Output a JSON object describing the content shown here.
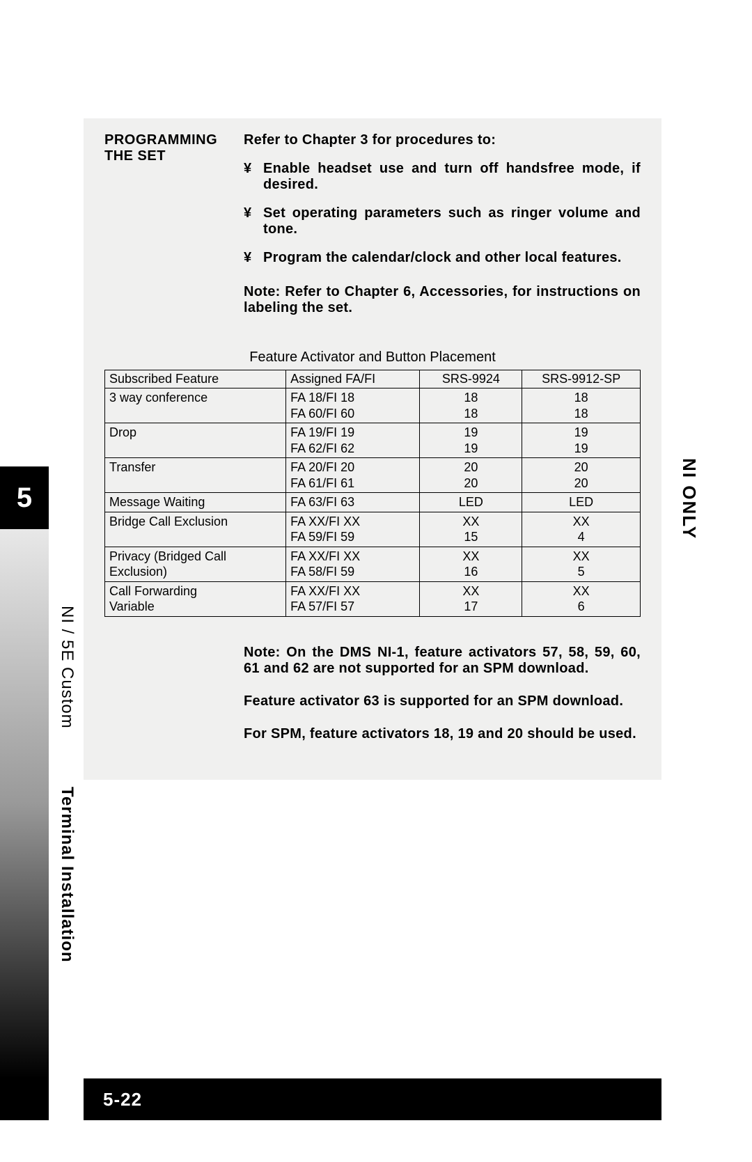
{
  "chapter_number": "5",
  "side_labels": {
    "ni_only": "NI ONLY",
    "section_prefix": "NI / 5E Custom",
    "section_title": "Terminal Installation"
  },
  "page_number": "5-22",
  "programming": {
    "heading_line1": "PROGRAMMING",
    "heading_line2": "THE SET",
    "intro": "Refer to Chapter 3 for procedures to:",
    "bullets": [
      "Enable headset use and turn off handsfree mode, if desired.",
      "Set operating parameters such as ringer volume and tone.",
      "Program the calendar/clock and other local features."
    ],
    "note": "Note: Refer to Chapter 6, Accessories, for instructions on labeling the set."
  },
  "table": {
    "caption": "Feature Activator and Button Placement",
    "headers": [
      "Subscribed Feature",
      "Assigned FA/FI",
      "SRS-9924",
      "SRS-9912-SP"
    ],
    "rows": [
      {
        "feature": "3 way conference",
        "fa": [
          "FA 18/FI 18",
          "FA 60/FI 60"
        ],
        "c3": [
          "18",
          "18"
        ],
        "c4": [
          "18",
          "18"
        ]
      },
      {
        "feature": "Drop",
        "fa": [
          "FA 19/FI 19",
          "FA 62/FI 62"
        ],
        "c3": [
          "19",
          "19"
        ],
        "c4": [
          "19",
          "19"
        ]
      },
      {
        "feature": "Transfer",
        "fa": [
          "FA 20/FI 20",
          "FA 61/FI 61"
        ],
        "c3": [
          "20",
          "20"
        ],
        "c4": [
          "20",
          "20"
        ]
      },
      {
        "feature": "Message Waiting",
        "fa": [
          "FA 63/FI 63"
        ],
        "c3": [
          "LED"
        ],
        "c4": [
          "LED"
        ]
      },
      {
        "feature": "Bridge Call Exclusion",
        "fa": [
          "FA XX/FI XX",
          "FA 59/FI 59"
        ],
        "c3": [
          "XX",
          "15"
        ],
        "c4": [
          "XX",
          "4"
        ]
      },
      {
        "feature": "Privacy (Bridged Call Exclusion)",
        "fa": [
          "FA XX/FI XX",
          "FA 58/FI 59"
        ],
        "c3": [
          "XX",
          "16"
        ],
        "c4": [
          "XX",
          "5"
        ]
      },
      {
        "feature": "Call Forwarding Variable",
        "fa": [
          "FA XX/FI XX",
          "FA 57/FI 57"
        ],
        "c3": [
          "XX",
          "17"
        ],
        "c4": [
          "XX",
          "6"
        ]
      }
    ]
  },
  "footnotes": [
    "Note: On the DMS NI-1, feature activators 57, 58, 59, 60, 61 and 62 are not supported for an SPM download.",
    "Feature activator 63 is supported for an SPM download.",
    "For SPM, feature activators 18, 19 and 20 should be used."
  ],
  "colors": {
    "page_bg": "#ffffff",
    "content_bg": "#f0f0ef",
    "text": "#000000",
    "tab_bg": "#000000",
    "tab_fg": "#ffffff"
  }
}
